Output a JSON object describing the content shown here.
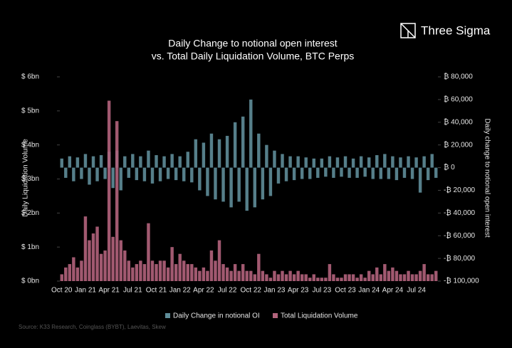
{
  "brand": "Three Sigma",
  "chart_data": {
    "type": "bar",
    "title": "Daily Change to notional open interest",
    "subtitle": "vs. Total Daily Liquidation Volume, BTC Perps",
    "y_label": "Daily Liquidation Volume",
    "y2_label": "Daily change to notional open interest",
    "source": "Source: K33 Research, Coinglass (BYBT), Laevitas, Skew",
    "categories": [
      "Oct 20",
      null,
      null,
      null,
      null,
      null,
      "Jan 21",
      null,
      null,
      null,
      null,
      null,
      "Apr 21",
      null,
      null,
      null,
      null,
      null,
      "Jul 21",
      null,
      null,
      null,
      null,
      null,
      "Oct 21",
      null,
      null,
      null,
      null,
      null,
      "Jan 22",
      null,
      null,
      null,
      null,
      null,
      "Apr 22",
      null,
      null,
      null,
      null,
      null,
      "Jul 22",
      null,
      null,
      null,
      null,
      null,
      "Oct 22",
      null,
      null,
      null,
      null,
      null,
      "Jan 23",
      null,
      null,
      null,
      null,
      null,
      "Apr 23",
      null,
      null,
      null,
      null,
      null,
      "Jul 23",
      null,
      null,
      null,
      null,
      null,
      "Oct 23",
      null,
      null,
      null,
      null,
      null,
      "Jan 24",
      null,
      null,
      null,
      null,
      null,
      "Apr 24",
      null,
      null,
      null,
      null,
      null,
      "Jul 24",
      null,
      null,
      null,
      null,
      null
    ],
    "series": [
      {
        "name": "Daily Change in notional OI",
        "color": "#5f8d99",
        "axis": "y2",
        "values": [
          8000,
          -9000,
          10000,
          -12000,
          9000,
          -10000,
          12000,
          -15000,
          10000,
          -12000,
          11000,
          -10000,
          14000,
          -18000,
          15000,
          -20000,
          10000,
          -9000,
          12000,
          -11000,
          10000,
          -12000,
          15000,
          -14000,
          11000,
          -12000,
          10000,
          -10000,
          12000,
          -11000,
          10000,
          -12000,
          14000,
          -13000,
          25000,
          -20000,
          22000,
          -25000,
          30000,
          -28000,
          25000,
          -30000,
          28000,
          -35000,
          40000,
          -30000,
          45000,
          -38000,
          60000,
          -35000,
          30000,
          -28000,
          20000,
          -25000,
          15000,
          -14000,
          12000,
          -12000,
          10000,
          -11000,
          10000,
          -10000,
          9000,
          -10000,
          8000,
          -9000,
          8000,
          -8000,
          10000,
          -9000,
          9000,
          -8000,
          10000,
          -9000,
          8000,
          -9000,
          10000,
          -8000,
          9000,
          -10000,
          11000,
          -10000,
          12000,
          -10000,
          10000,
          -11000,
          9000,
          -9000,
          10000,
          -10000,
          9000,
          -22000,
          10000,
          -11000,
          12000,
          -9000
        ]
      },
      {
        "name": "Total Liquidation Volume",
        "color": "#b2637c",
        "values": [
          0.2,
          0.4,
          0.5,
          0.7,
          0.4,
          0.6,
          1.9,
          1.2,
          1.4,
          1.6,
          0.8,
          0.9,
          5.3,
          1.3,
          4.7,
          1.2,
          0.9,
          0.6,
          0.4,
          0.5,
          0.6,
          0.5,
          1.7,
          0.6,
          0.5,
          0.6,
          0.6,
          0.4,
          1.0,
          0.5,
          0.8,
          0.6,
          0.5,
          0.5,
          0.4,
          0.3,
          0.4,
          0.3,
          0.9,
          0.6,
          1.2,
          0.5,
          0.4,
          0.3,
          0.5,
          0.3,
          0.5,
          0.3,
          0.3,
          0.2,
          0.8,
          0.3,
          0.2,
          0.1,
          0.3,
          0.2,
          0.3,
          0.2,
          0.3,
          0.2,
          0.3,
          0.2,
          0.2,
          0.1,
          0.2,
          0.1,
          0.1,
          0.1,
          0.5,
          0.2,
          0.1,
          0.1,
          0.2,
          0.2,
          0.2,
          0.1,
          0.2,
          0.1,
          0.3,
          0.2,
          0.4,
          0.2,
          0.5,
          0.3,
          0.4,
          0.3,
          0.2,
          0.2,
          0.3,
          0.2,
          0.2,
          0.3,
          0.5,
          0.2,
          0.2,
          0.3
        ]
      }
    ],
    "ylim": [
      0,
      6
    ],
    "yticks": [
      {
        "value": 0,
        "label": "$ 0bn"
      },
      {
        "value": 1,
        "label": "$ 1bn"
      },
      {
        "value": 2,
        "label": "$ 2bn"
      },
      {
        "value": 3,
        "label": "$ 3bn"
      },
      {
        "value": 4,
        "label": "$ 4bn"
      },
      {
        "value": 5,
        "label": "$ 5bn"
      },
      {
        "value": 6,
        "label": "$ 6bn"
      }
    ],
    "y2lim": [
      -100000,
      80000
    ],
    "y2ticks": [
      {
        "value": 80000,
        "label": "₿ 80,000"
      },
      {
        "value": 60000,
        "label": "₿ 60,000"
      },
      {
        "value": 40000,
        "label": "₿ 40,000"
      },
      {
        "value": 20000,
        "label": "₿ 20,000"
      },
      {
        "value": 0,
        "label": "₿ 0"
      },
      {
        "value": -20000,
        "label": "-₿ 20,000"
      },
      {
        "value": -40000,
        "label": "-₿ 40,000"
      },
      {
        "value": -60000,
        "label": "-₿ 60,000"
      },
      {
        "value": -80000,
        "label": "-₿ 80,000"
      },
      {
        "value": -100000,
        "label": "-₿ 100,000"
      }
    ]
  }
}
